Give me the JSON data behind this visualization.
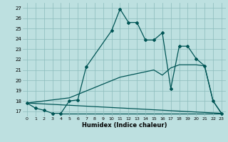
{
  "bg_color": "#bde0e0",
  "grid_color": "#8cbcbc",
  "line_color": "#005555",
  "xlabel": "Humidex (Indice chaleur)",
  "xlim": [
    -0.5,
    23.5
  ],
  "ylim": [
    16.5,
    27.5
  ],
  "yticks": [
    17,
    18,
    19,
    20,
    21,
    22,
    23,
    24,
    25,
    26,
    27
  ],
  "xticks": [
    0,
    1,
    2,
    3,
    4,
    5,
    6,
    7,
    8,
    9,
    10,
    11,
    12,
    13,
    14,
    15,
    16,
    17,
    18,
    19,
    20,
    21,
    22,
    23
  ],
  "curve1_x": [
    0,
    1,
    2,
    3,
    4,
    5,
    6,
    7,
    10,
    11,
    12,
    13,
    14,
    15,
    16,
    17,
    18,
    19,
    20,
    21,
    22,
    23
  ],
  "curve1_y": [
    17.8,
    17.3,
    17.1,
    16.8,
    16.8,
    18.0,
    18.1,
    21.3,
    24.8,
    26.9,
    25.6,
    25.6,
    23.9,
    23.9,
    24.6,
    19.2,
    23.3,
    23.3,
    22.1,
    21.4,
    18.0,
    16.8
  ],
  "curve2_x": [
    0,
    23
  ],
  "curve2_y": [
    17.8,
    16.8
  ],
  "curve3_x": [
    0,
    5,
    11,
    15,
    16,
    17,
    18,
    19,
    20,
    21,
    22,
    23
  ],
  "curve3_y": [
    17.8,
    18.3,
    20.3,
    21.0,
    20.5,
    21.2,
    21.5,
    21.5,
    21.5,
    21.4,
    18.0,
    16.8
  ],
  "flatline_x": [
    4,
    23
  ],
  "flatline_y": [
    16.8,
    16.8
  ]
}
